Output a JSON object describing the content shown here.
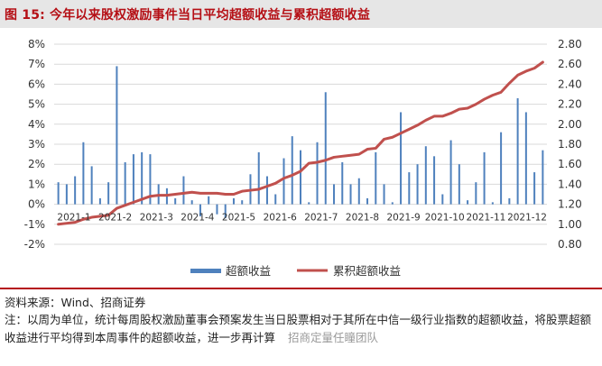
{
  "header": {
    "title": "图 15:  今年以来股权激励事件当日平均超额收益与累积超额收益"
  },
  "footer": {
    "source": "资料来源：Wind、招商证券",
    "note": "注：以周为单位，统计每周股权激励董事会预案发生当日股票相对于其所在中信一级行业指数的超额收益，将股票超额收益进行平均得到本周事件的超额收益，进一步再计算"
  },
  "watermark": "招商定量任瞳团队",
  "colors": {
    "bar": "#4f81bd",
    "line": "#c0504d",
    "title": "#b50f15",
    "title_bg": "#e6e6e6"
  },
  "chart_data": {
    "type": "bar+line",
    "x_labels": [
      "2021-1",
      "2021-2",
      "2021-3",
      "2021-4",
      "2021-5",
      "2021-6",
      "2021-7",
      "2021-8",
      "2021-9",
      "2021-10",
      "2021-11",
      "2021-12"
    ],
    "left_axis": {
      "ylim": [
        -0.02,
        0.08
      ],
      "ticks": [
        "-2%",
        "-1%",
        "0%",
        "1%",
        "2%",
        "3%",
        "4%",
        "5%",
        "6%",
        "7%",
        "8%"
      ]
    },
    "right_axis": {
      "ylim": [
        0.8,
        2.8
      ],
      "ticks": [
        "0.80",
        "1.00",
        "1.20",
        "1.40",
        "1.60",
        "1.80",
        "2.00",
        "2.20",
        "2.40",
        "2.60",
        "2.80"
      ]
    },
    "legend": {
      "position": "bottom",
      "entries": [
        "超额收益",
        "累积超额收益"
      ]
    },
    "series": [
      {
        "name": "超额收益",
        "axis": "left",
        "kind": "bar",
        "values": [
          1.1,
          1.0,
          1.4,
          3.1,
          1.9,
          0.3,
          1.1,
          6.9,
          2.1,
          2.5,
          2.6,
          2.5,
          1.0,
          0.8,
          0.3,
          1.4,
          0.2,
          -0.6,
          0.4,
          -0.5,
          -0.7,
          0.3,
          0.2,
          1.5,
          2.6,
          1.4,
          0.5,
          2.3,
          3.4,
          2.7,
          0.1,
          3.1,
          5.6,
          1.0,
          2.1,
          1.0,
          1.3,
          0.3,
          2.6,
          1.0,
          0.1,
          4.6,
          1.6,
          2.0,
          2.9,
          2.4,
          0.5,
          3.2,
          2.0,
          0.2,
          1.1,
          2.6,
          0.1,
          3.6,
          0.3,
          5.3,
          4.6,
          1.6,
          2.7
        ]
      },
      {
        "name": "累积超额收益",
        "axis": "right",
        "kind": "line",
        "values": [
          1.0,
          1.01,
          1.02,
          1.05,
          1.07,
          1.08,
          1.09,
          1.16,
          1.19,
          1.22,
          1.25,
          1.28,
          1.29,
          1.29,
          1.3,
          1.31,
          1.32,
          1.31,
          1.31,
          1.31,
          1.3,
          1.3,
          1.33,
          1.34,
          1.35,
          1.38,
          1.41,
          1.46,
          1.49,
          1.53,
          1.61,
          1.62,
          1.64,
          1.67,
          1.68,
          1.69,
          1.7,
          1.75,
          1.76,
          1.85,
          1.87,
          1.91,
          1.95,
          1.99,
          2.04,
          2.08,
          2.08,
          2.11,
          2.15,
          2.16,
          2.2,
          2.25,
          2.29,
          2.32,
          2.41,
          2.49,
          2.53,
          2.56,
          2.62
        ]
      }
    ]
  }
}
